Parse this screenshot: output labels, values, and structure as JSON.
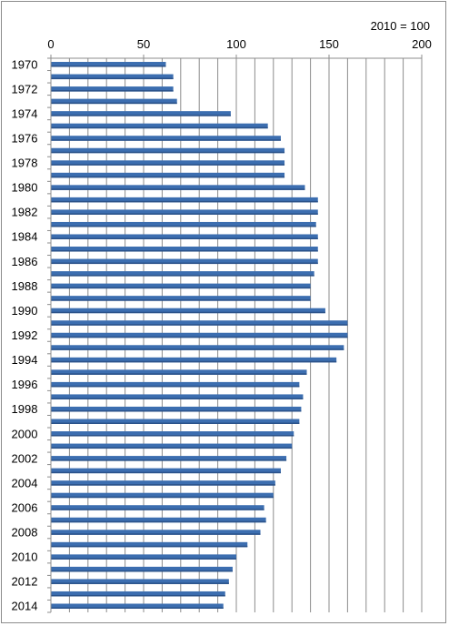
{
  "chart_data": {
    "type": "bar",
    "orientation": "horizontal",
    "annotation": "2010 = 100",
    "title": "",
    "xlabel": "",
    "ylabel": "",
    "xlim": [
      0,
      200
    ],
    "x_ticks": [
      "0",
      "50",
      "100",
      "150",
      "200"
    ],
    "x_axis_position": "top",
    "grid": true,
    "bar_color": "#3c6eb0",
    "categories": [
      "1970",
      "1971",
      "1972",
      "1973",
      "1974",
      "1975",
      "1976",
      "1977",
      "1978",
      "1979",
      "1980",
      "1981",
      "1982",
      "1983",
      "1984",
      "1985",
      "1986",
      "1987",
      "1988",
      "1989",
      "1990",
      "1991",
      "1992",
      "1993",
      "1994",
      "1995",
      "1996",
      "1997",
      "1998",
      "1999",
      "2000",
      "2001",
      "2002",
      "2003",
      "2004",
      "2005",
      "2006",
      "2007",
      "2008",
      "2009",
      "2010",
      "2011",
      "2012",
      "2013",
      "2014"
    ],
    "shown_category_labels": [
      "1970",
      "1972",
      "1974",
      "1976",
      "1978",
      "1980",
      "1982",
      "1984",
      "1986",
      "1988",
      "1990",
      "1992",
      "1994",
      "1996",
      "1998",
      "2000",
      "2002",
      "2004",
      "2006",
      "2008",
      "2010",
      "2012",
      "2014"
    ],
    "values": [
      62,
      66,
      66,
      68,
      97,
      117,
      124,
      126,
      126,
      126,
      137,
      144,
      144,
      143,
      144,
      144,
      144,
      142,
      140,
      140,
      148,
      160,
      160,
      158,
      154,
      138,
      134,
      136,
      135,
      134,
      131,
      130,
      127,
      124,
      121,
      120,
      115,
      116,
      113,
      106,
      100,
      98,
      96,
      94,
      93
    ]
  }
}
